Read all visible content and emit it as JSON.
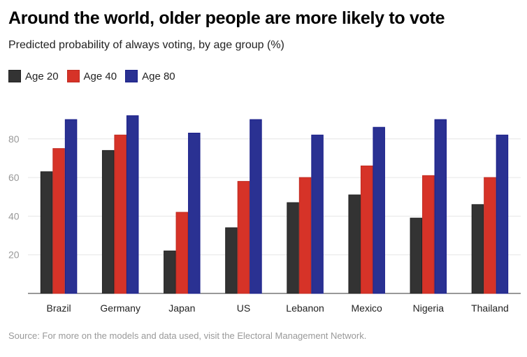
{
  "chart_data": {
    "type": "bar",
    "title": "Around the world, older people are more likely to vote",
    "subtitle": "Predicted probability of always voting, by age group (%)",
    "source": "Source: For more on the models and data used, visit the Electoral Management Network.",
    "categories": [
      "Brazil",
      "Germany",
      "Japan",
      "US",
      "Lebanon",
      "Mexico",
      "Nigeria",
      "Thailand"
    ],
    "series": [
      {
        "name": "Age 20",
        "color": "#333333",
        "values": [
          63,
          74,
          22,
          34,
          47,
          51,
          39,
          46
        ]
      },
      {
        "name": "Age 40",
        "color": "#d63328",
        "values": [
          75,
          82,
          42,
          58,
          60,
          66,
          61,
          60
        ]
      },
      {
        "name": "Age 80",
        "color": "#2a3192",
        "values": [
          90,
          92,
          83,
          90,
          82,
          86,
          90,
          82
        ]
      }
    ],
    "yticks": [
      20,
      40,
      60,
      80
    ],
    "ylim": [
      0,
      100
    ],
    "grid": true,
    "legend": "top-left"
  }
}
